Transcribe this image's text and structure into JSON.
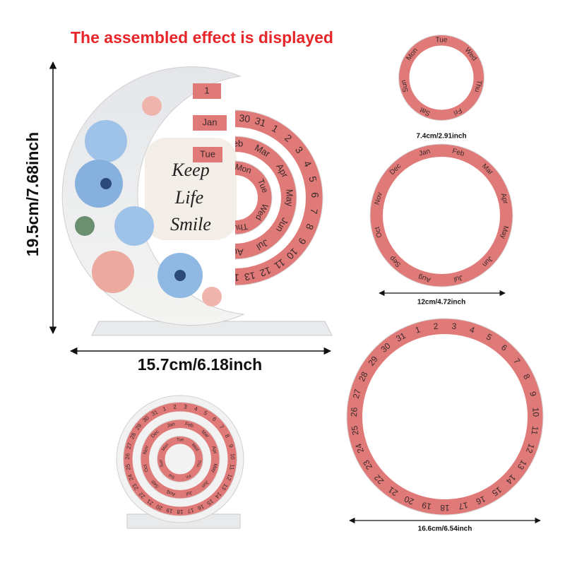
{
  "title": "The assembled effect is displayed",
  "dimensions": {
    "height": "19.5cm/7.68inch",
    "width": "15.7cm/6.18inch",
    "small_ring": "7.4cm/2.91inch",
    "medium_ring": "12cm/4.72inch",
    "large_ring": "16.6cm/6.54inch"
  },
  "calendar": {
    "slogan": [
      "Keep",
      "Life",
      "Smile"
    ],
    "date_tabs": [
      "1",
      "Jan",
      "Tue"
    ]
  },
  "rings": {
    "weekdays": [
      "Sun",
      "Mon",
      "Tue",
      "Wed",
      "Thu",
      "Fri",
      "Sat"
    ],
    "months": [
      "Jan",
      "Feb",
      "Mar",
      "Apr",
      "May",
      "Jun",
      "Jul",
      "Aug",
      "Sep",
      "Oct",
      "Nov",
      "Dec"
    ],
    "days": [
      1,
      2,
      3,
      4,
      5,
      6,
      7,
      8,
      9,
      10,
      11,
      12,
      13,
      14,
      15,
      16,
      17,
      18,
      19,
      20,
      21,
      22,
      23,
      24,
      25,
      26,
      27,
      28,
      29,
      30,
      31
    ]
  }
}
